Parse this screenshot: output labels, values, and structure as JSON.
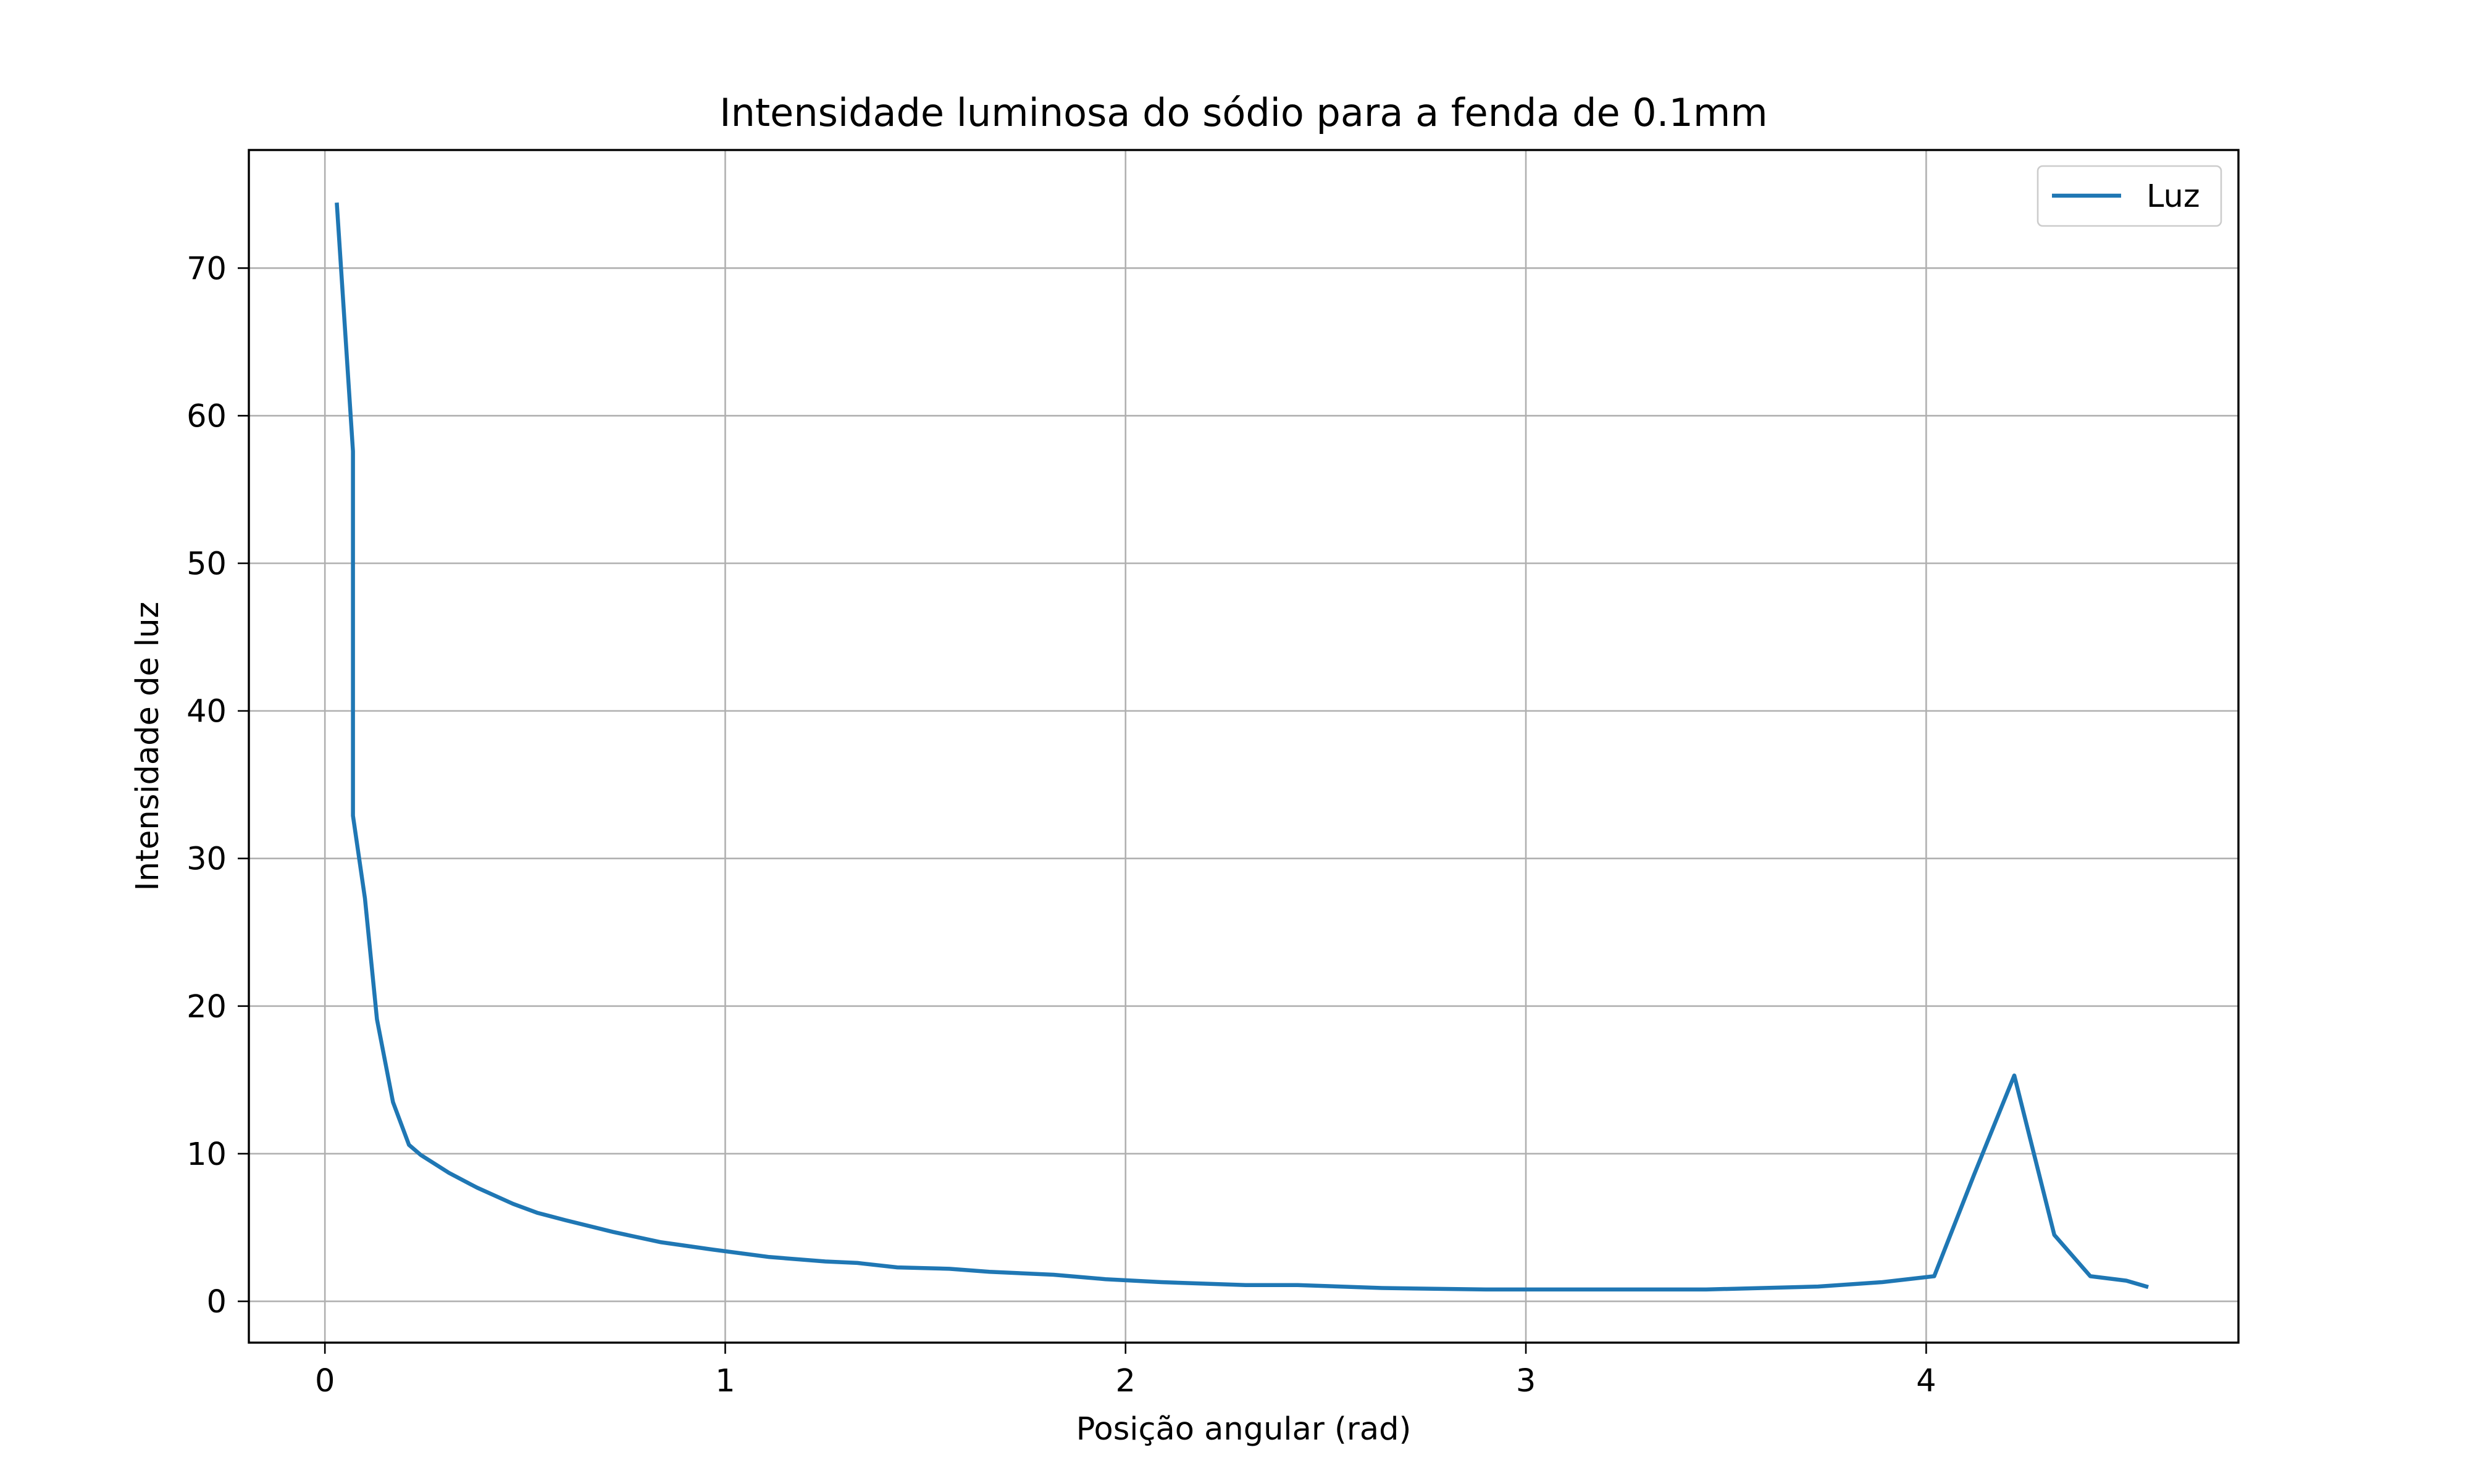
{
  "chart_data": {
    "type": "line",
    "title": "Intensidade luminosa do sódio para a fenda de 0.1mm",
    "xlabel": "Posição angular (rad)",
    "ylabel": "Intensidade de luz",
    "xlim": [
      -0.19,
      4.78
    ],
    "ylim": [
      -2.8,
      78.0
    ],
    "grid": true,
    "legend_location": "top-right",
    "x_ticks": [
      {
        "value": 0,
        "label": "0"
      },
      {
        "value": 1,
        "label": "1"
      },
      {
        "value": 2,
        "label": "2"
      },
      {
        "value": 3,
        "label": "3"
      },
      {
        "value": 4,
        "label": "4"
      }
    ],
    "y_ticks": [
      {
        "value": 0,
        "label": "0"
      },
      {
        "value": 10,
        "label": "10"
      },
      {
        "value": 20,
        "label": "20"
      },
      {
        "value": 30,
        "label": "30"
      },
      {
        "value": 40,
        "label": "40"
      },
      {
        "value": 50,
        "label": "50"
      },
      {
        "value": 60,
        "label": "60"
      },
      {
        "value": 70,
        "label": "70"
      }
    ],
    "series": [
      {
        "name": "Luz",
        "color": "#1f77b4",
        "x": [
          0.03,
          0.07,
          0.07,
          0.1,
          0.13,
          0.17,
          0.21,
          0.24,
          0.31,
          0.38,
          0.47,
          0.53,
          0.6,
          0.72,
          0.84,
          0.97,
          1.11,
          1.25,
          1.33,
          1.43,
          1.56,
          1.66,
          1.82,
          1.95,
          2.09,
          2.3,
          2.43,
          2.64,
          2.9,
          3.11,
          3.45,
          3.73,
          3.89,
          4.02,
          4.12,
          4.22,
          4.32,
          4.41,
          4.5,
          4.55
        ],
        "y": [
          74.3,
          57.6,
          32.9,
          27.3,
          19.1,
          13.5,
          10.6,
          9.9,
          8.7,
          7.7,
          6.6,
          6.0,
          5.5,
          4.7,
          4.0,
          3.5,
          3.0,
          2.7,
          2.6,
          2.3,
          2.2,
          2.0,
          1.8,
          1.5,
          1.3,
          1.1,
          1.1,
          0.9,
          0.8,
          0.8,
          0.8,
          1.0,
          1.3,
          1.7,
          8.6,
          15.3,
          4.5,
          1.7,
          1.4,
          1.0
        ]
      }
    ]
  }
}
